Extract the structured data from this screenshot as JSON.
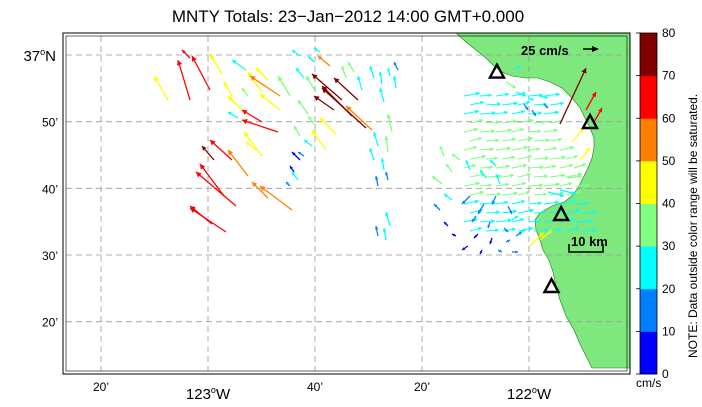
{
  "title": "MNTY Totals: 23−Jan−2012 14:00 GMT+0.000",
  "latitude_labels": [
    {
      "text": "37",
      "suffix": "N",
      "lat": 37.0
    },
    {
      "text": "50’",
      "lat": 36.8333
    },
    {
      "text": "40’",
      "lat": 36.6667
    },
    {
      "text": "30’",
      "lat": 36.5
    },
    {
      "text": "20’",
      "lat": 36.3333
    }
  ],
  "longitude_labels": [
    {
      "text": "20’",
      "lon": -123.3333
    },
    {
      "text": "123",
      "suffix": "W",
      "lon": -123.0
    },
    {
      "text": "40’",
      "lon": -122.6667
    },
    {
      "text": "20’",
      "lon": -122.3333
    },
    {
      "text": "122",
      "suffix": "W",
      "lon": -122.0
    }
  ],
  "colorbar": {
    "ticks": [
      "0",
      "10",
      "20",
      "30",
      "40",
      "50",
      "60",
      "70",
      "80"
    ],
    "units": "cm/s",
    "note": "NOTE: Data outside color range will be saturated.",
    "colors": [
      "#0000ff",
      "#0080ff",
      "#00ffff",
      "#80ff80",
      "#ffff00",
      "#ff8000",
      "#ff0000",
      "#800000"
    ]
  },
  "reference_vector": {
    "label": "25 cm/s"
  },
  "scale_bar": {
    "label": "10 km"
  },
  "stations": [
    {
      "lon": -122.1,
      "lat": 36.956
    },
    {
      "lon": -121.81,
      "lat": 36.83
    },
    {
      "lon": -121.9,
      "lat": 36.6
    },
    {
      "lon": -121.93,
      "lat": 36.42
    }
  ],
  "map_colors": {
    "land": "#7ee87e",
    "ocean": "#ffffff",
    "grid": "#999999"
  }
}
